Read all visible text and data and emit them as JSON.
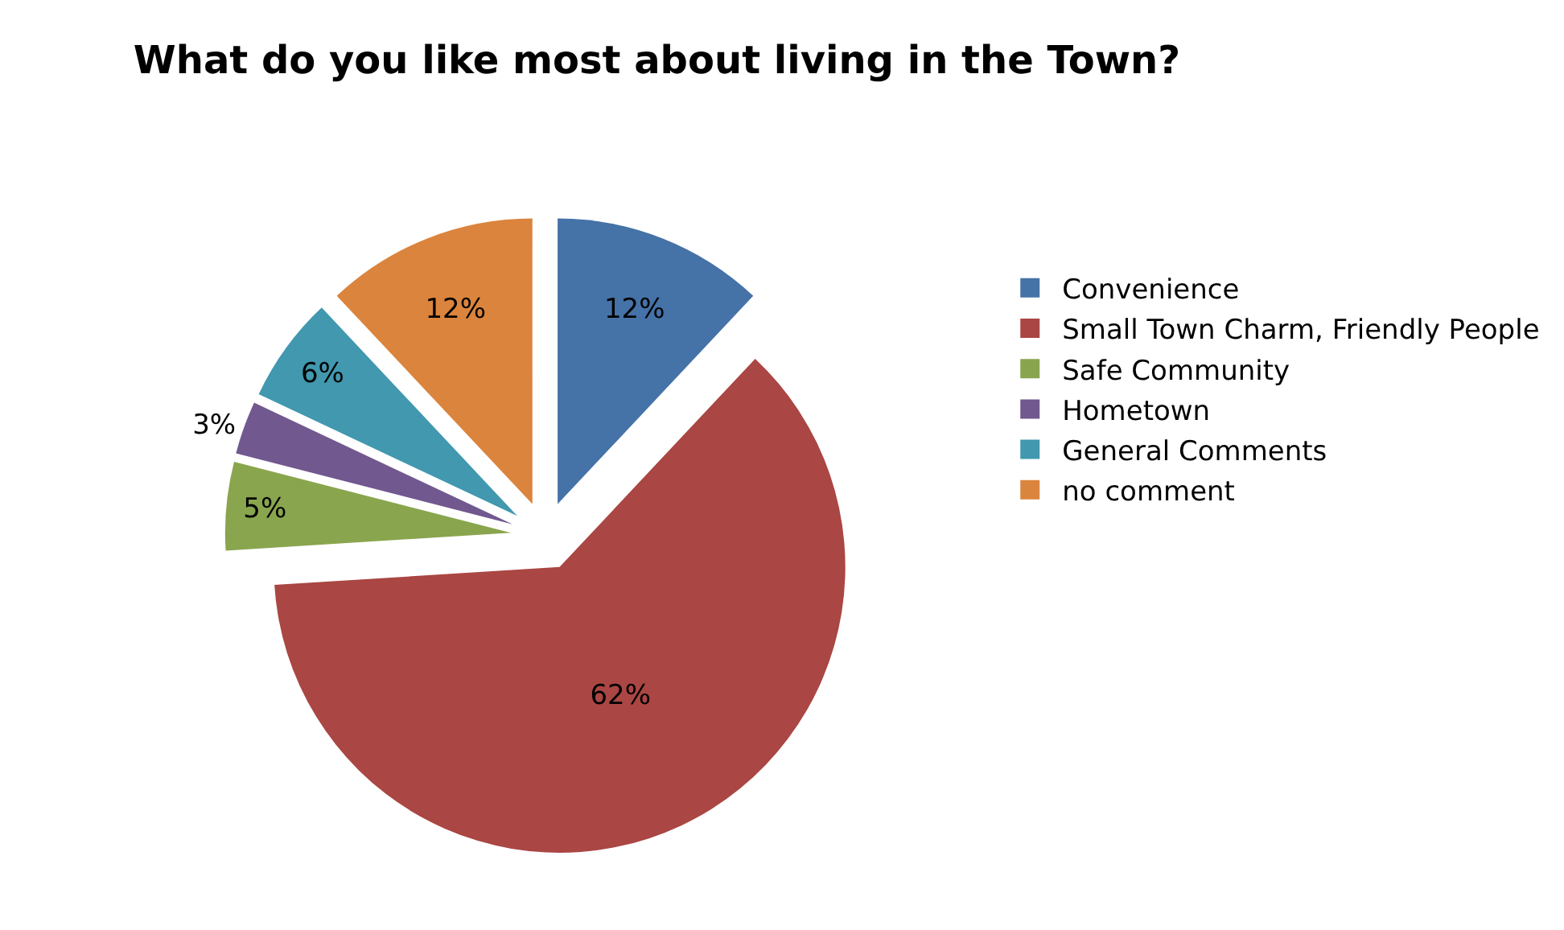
{
  "chart_data": {
    "type": "pie",
    "title": "What do you like most about living in the Town?",
    "categories": [
      "Convenience",
      "Small Town Charm, Friendly People",
      "Safe Community",
      "Hometown",
      "General Comments",
      "no comment"
    ],
    "values": [
      12,
      62,
      5,
      3,
      6,
      12
    ],
    "colors": [
      "#4572a7",
      "#aa4643",
      "#89a54e",
      "#71588f",
      "#4198af",
      "#db843d"
    ],
    "value_labels": [
      "12%",
      "62%",
      "5%",
      "3%",
      "6%",
      "12%"
    ],
    "legend": "right"
  }
}
